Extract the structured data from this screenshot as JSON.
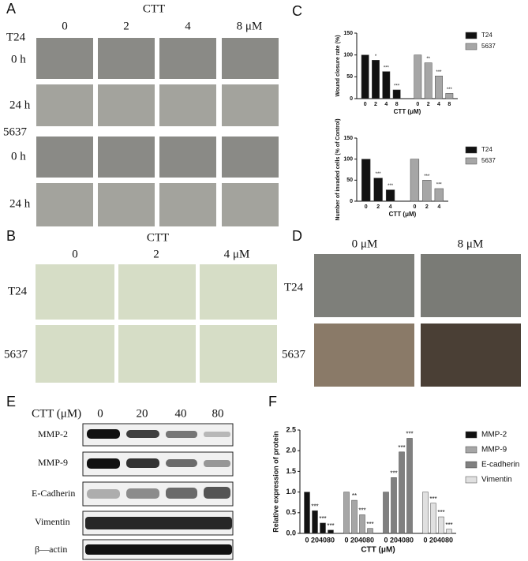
{
  "panel_a": {
    "label": "A",
    "header": "CTT",
    "columns": [
      "0",
      "2",
      "4",
      "8 μM"
    ],
    "rows": [
      "T24",
      "0 h",
      "24 h",
      "5637",
      "0 h",
      "24 h"
    ]
  },
  "panel_b": {
    "label": "B",
    "header": "CTT",
    "columns": [
      "0",
      "2",
      "4 μM"
    ],
    "rows": [
      "T24",
      "5637"
    ]
  },
  "panel_c": {
    "label": "C"
  },
  "panel_d": {
    "label": "D",
    "columns": [
      "0 μM",
      "8 μM"
    ],
    "rows": [
      "T24",
      "5637"
    ]
  },
  "panel_e": {
    "label": "E",
    "header": "CTT (μM)",
    "columns": [
      "0",
      "20",
      "40",
      "80"
    ],
    "rows": [
      "MMP-2",
      "MMP-9",
      "E-Cadherin",
      "Vimentin",
      "β—actin"
    ]
  },
  "panel_f": {
    "label": "F"
  },
  "chart_data": [
    {
      "type": "bar",
      "y_label": "Wound closure rate (%)",
      "x_label": "CTT (μM)",
      "categories": [
        "0",
        "2",
        "4",
        "8"
      ],
      "series": [
        {
          "name": "T24",
          "color": "#111111",
          "values": [
            100,
            88,
            62,
            20
          ],
          "labels": [
            null,
            "*",
            "***",
            "***"
          ]
        },
        {
          "name": "5637",
          "color": "#a6a6a6",
          "values": [
            100,
            82,
            52,
            12
          ],
          "labels": [
            null,
            "**",
            "***",
            "***"
          ]
        }
      ],
      "ylim": [
        0,
        150
      ],
      "yticks": [
        0,
        50,
        100,
        150
      ]
    },
    {
      "type": "bar",
      "y_label": "Number of invaded cells (% of Control)",
      "x_label": "CTT (μM)",
      "categories": [
        "0",
        "2",
        "4"
      ],
      "series": [
        {
          "name": "T24",
          "color": "#111111",
          "values": [
            100,
            55,
            27
          ],
          "labels": [
            null,
            "***",
            "***"
          ]
        },
        {
          "name": "5637",
          "color": "#a6a6a6",
          "values": [
            100,
            50,
            30
          ],
          "labels": [
            null,
            "***",
            "***"
          ]
        }
      ],
      "ylim": [
        0,
        150
      ],
      "yticks": [
        0,
        50,
        100,
        150
      ]
    },
    {
      "type": "bar",
      "y_label": "Relative expression of protein",
      "x_label": "CTT (μM)",
      "categories": [
        "0",
        "20",
        "40",
        "80"
      ],
      "series": [
        {
          "name": "MMP-2",
          "color": "#111111",
          "values": [
            1,
            0.55,
            0.25,
            0.08
          ],
          "labels": [
            null,
            "***",
            "***",
            "***"
          ]
        },
        {
          "name": "MMP-9",
          "color": "#a6a6a6",
          "values": [
            1,
            0.8,
            0.45,
            0.12
          ],
          "labels": [
            null,
            "**",
            "***",
            "***"
          ]
        },
        {
          "name": "E-cadherin",
          "color": "#808080",
          "values": [
            1,
            1.35,
            1.97,
            2.3
          ],
          "labels": [
            null,
            "***",
            "***",
            "***"
          ]
        },
        {
          "name": "Vimentin",
          "color": "#e0e0e0",
          "values": [
            1,
            0.73,
            0.4,
            0.1
          ],
          "labels": [
            null,
            "***",
            "***",
            "***"
          ]
        }
      ],
      "ylim": [
        0,
        2.5
      ],
      "yticks": [
        {
          "value": 0,
          "label": "0.0"
        },
        0.5,
        {
          "value": 1,
          "label": "1.0"
        },
        1.5,
        {
          "value": 2,
          "label": "2.0"
        },
        2.5
      ]
    }
  ]
}
